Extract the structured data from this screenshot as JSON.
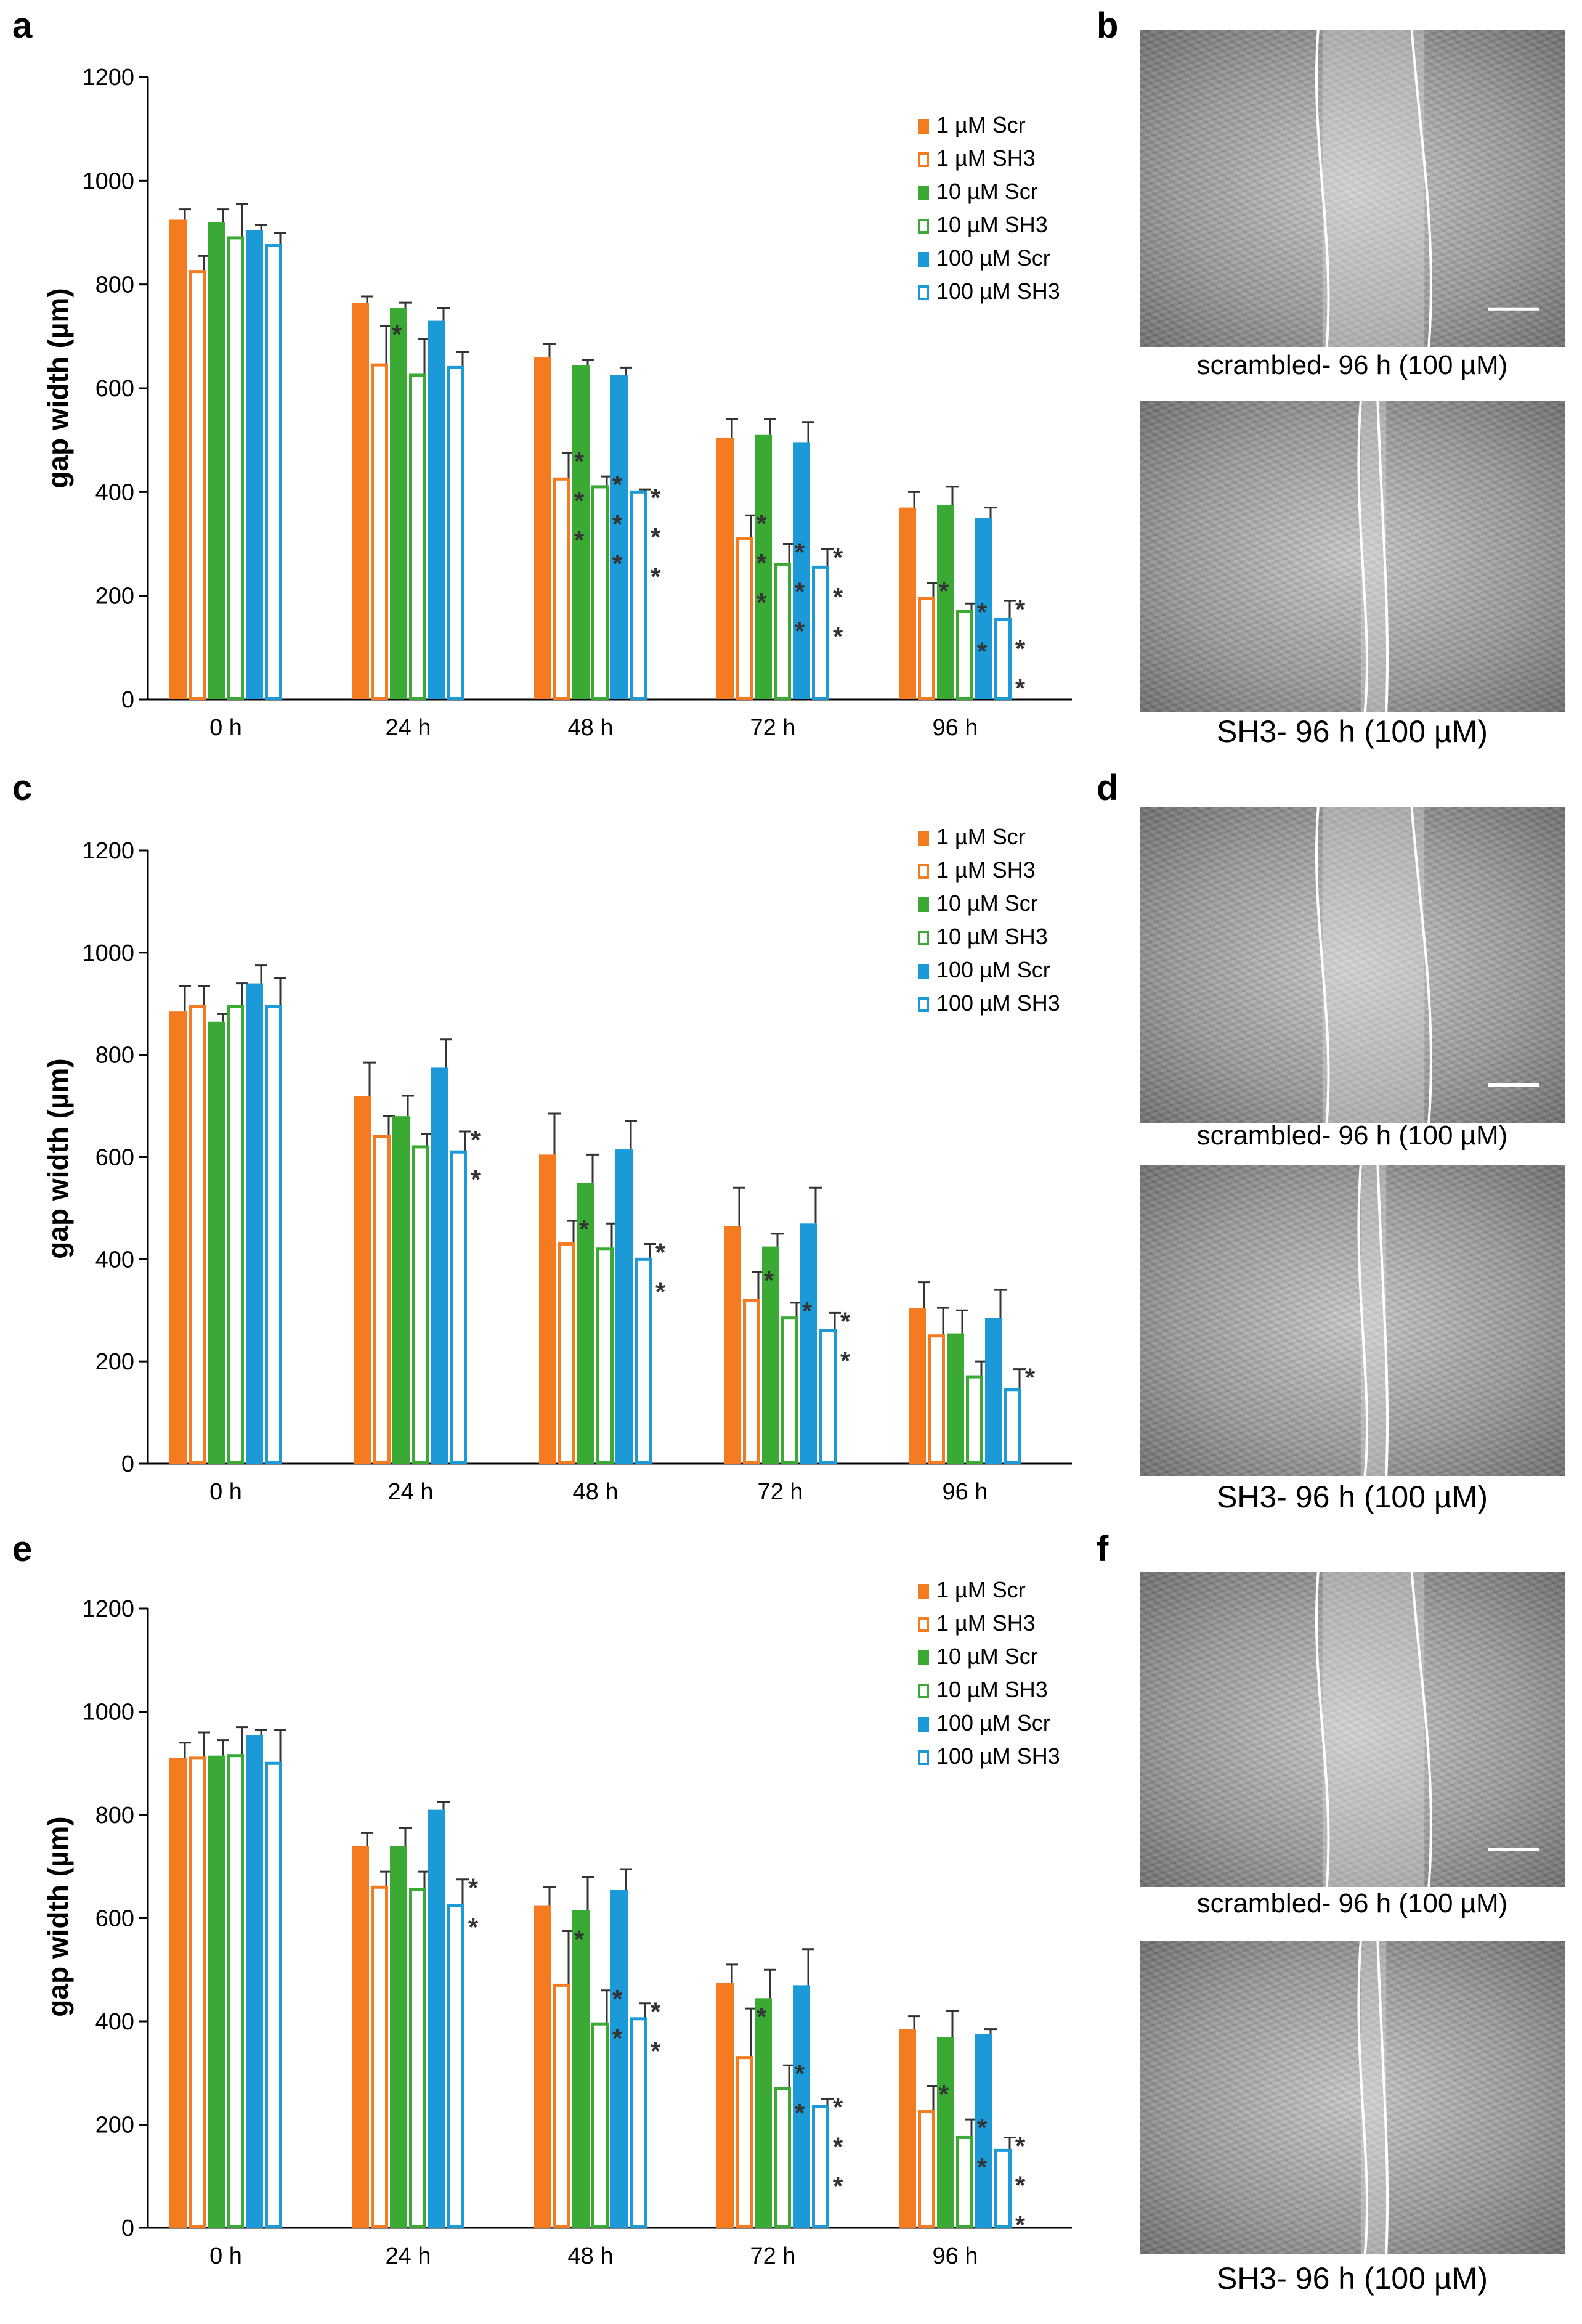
{
  "colors": {
    "orange": "#F47B20",
    "green": "#3AAA35",
    "blue": "#1B9AD7",
    "axis": "#000000",
    "error": "#333333",
    "star": "#333333"
  },
  "chart_data": [
    {
      "panel": "a",
      "type": "bar",
      "ylabel": "gap width (µm)",
      "ylim": [
        0,
        1200
      ],
      "yticks": [
        "0",
        "200",
        "400",
        "600",
        "800",
        "1000",
        "1200"
      ],
      "categories": [
        "0 h",
        "24 h",
        "48 h",
        "72 h",
        "96 h"
      ],
      "series": [
        {
          "name": "1 µM Scr",
          "color": "orange",
          "filled": true,
          "values": [
            925,
            765,
            660,
            505,
            370
          ],
          "errors": [
            20,
            12,
            25,
            35,
            30
          ]
        },
        {
          "name": "1 µM SH3",
          "color": "orange",
          "filled": false,
          "values": [
            825,
            645,
            425,
            310,
            195
          ],
          "errors": [
            30,
            75,
            50,
            45,
            30
          ]
        },
        {
          "name": "10 µM Scr",
          "color": "green",
          "filled": true,
          "values": [
            920,
            755,
            645,
            510,
            375
          ],
          "errors": [
            25,
            10,
            10,
            30,
            35
          ]
        },
        {
          "name": "10 µM SH3",
          "color": "green",
          "filled": false,
          "values": [
            890,
            625,
            410,
            260,
            170
          ],
          "errors": [
            65,
            70,
            20,
            40,
            15
          ]
        },
        {
          "name": "100 µM Scr",
          "color": "blue",
          "filled": true,
          "values": [
            905,
            730,
            625,
            495,
            350
          ],
          "errors": [
            10,
            25,
            15,
            40,
            20
          ]
        },
        {
          "name": "100 µM SH3",
          "color": "blue",
          "filled": false,
          "values": [
            875,
            640,
            400,
            255,
            155
          ],
          "errors": [
            25,
            30,
            5,
            35,
            35
          ]
        }
      ],
      "significance": [
        {
          "category": 1,
          "series": 1,
          "text": "*"
        },
        {
          "category": 2,
          "series": 1,
          "text": "*"
        },
        {
          "category": 2,
          "series": 1,
          "text": "*"
        },
        {
          "category": 2,
          "series": 1,
          "text": "*"
        },
        {
          "category": 2,
          "series": 3,
          "text": "*"
        },
        {
          "category": 2,
          "series": 3,
          "text": "*"
        },
        {
          "category": 2,
          "series": 3,
          "text": "*"
        },
        {
          "category": 2,
          "series": 5,
          "text": "*"
        },
        {
          "category": 2,
          "series": 5,
          "text": "*"
        },
        {
          "category": 2,
          "series": 5,
          "text": "*"
        },
        {
          "category": 3,
          "series": 1,
          "text": "*"
        },
        {
          "category": 3,
          "series": 1,
          "text": "*"
        },
        {
          "category": 3,
          "series": 1,
          "text": "*"
        },
        {
          "category": 3,
          "series": 3,
          "text": "*"
        },
        {
          "category": 3,
          "series": 3,
          "text": "*"
        },
        {
          "category": 3,
          "series": 3,
          "text": "*"
        },
        {
          "category": 3,
          "series": 5,
          "text": "*"
        },
        {
          "category": 3,
          "series": 5,
          "text": "*"
        },
        {
          "category": 3,
          "series": 5,
          "text": "*"
        },
        {
          "category": 4,
          "series": 1,
          "text": "*"
        },
        {
          "category": 4,
          "series": 3,
          "text": "*"
        },
        {
          "category": 4,
          "series": 3,
          "text": "*"
        },
        {
          "category": 4,
          "series": 5,
          "text": "*"
        },
        {
          "category": 4,
          "series": 5,
          "text": "*"
        },
        {
          "category": 4,
          "series": 5,
          "text": "*"
        }
      ]
    },
    {
      "panel": "c",
      "type": "bar",
      "ylabel": "gap width (µm)",
      "ylim": [
        0,
        1200
      ],
      "yticks": [
        "0",
        "200",
        "400",
        "600",
        "800",
        "1000",
        "1200"
      ],
      "categories": [
        "0 h",
        "24 h",
        "48 h",
        "72 h",
        "96 h"
      ],
      "series": [
        {
          "name": "1 µM Scr",
          "color": "orange",
          "filled": true,
          "values": [
            885,
            720,
            605,
            465,
            305
          ],
          "errors": [
            50,
            65,
            80,
            75,
            50
          ]
        },
        {
          "name": "1 µM SH3",
          "color": "orange",
          "filled": false,
          "values": [
            895,
            640,
            430,
            320,
            250
          ],
          "errors": [
            40,
            40,
            45,
            55,
            55
          ]
        },
        {
          "name": "10 µM Scr",
          "color": "green",
          "filled": true,
          "values": [
            865,
            680,
            550,
            425,
            255
          ],
          "errors": [
            15,
            40,
            55,
            25,
            45
          ]
        },
        {
          "name": "10 µM SH3",
          "color": "green",
          "filled": false,
          "values": [
            895,
            620,
            420,
            285,
            170
          ],
          "errors": [
            45,
            25,
            50,
            30,
            30
          ]
        },
        {
          "name": "100 µM Scr",
          "color": "blue",
          "filled": true,
          "values": [
            940,
            775,
            615,
            470,
            285
          ],
          "errors": [
            35,
            55,
            55,
            70,
            55
          ]
        },
        {
          "name": "100 µM SH3",
          "color": "blue",
          "filled": false,
          "values": [
            895,
            610,
            400,
            260,
            145
          ],
          "errors": [
            55,
            40,
            30,
            35,
            40
          ]
        }
      ],
      "significance": [
        {
          "category": 1,
          "series": 5,
          "text": "*"
        },
        {
          "category": 1,
          "series": 5,
          "text": "*"
        },
        {
          "category": 2,
          "series": 1,
          "text": "*"
        },
        {
          "category": 2,
          "series": 5,
          "text": "*"
        },
        {
          "category": 2,
          "series": 5,
          "text": "*"
        },
        {
          "category": 3,
          "series": 1,
          "text": "*"
        },
        {
          "category": 3,
          "series": 3,
          "text": "*"
        },
        {
          "category": 3,
          "series": 5,
          "text": "*"
        },
        {
          "category": 3,
          "series": 5,
          "text": "*"
        },
        {
          "category": 4,
          "series": 5,
          "text": "*"
        }
      ]
    },
    {
      "panel": "e",
      "type": "bar",
      "ylabel": "gap width (µm)",
      "ylim": [
        0,
        1200
      ],
      "yticks": [
        "0",
        "200",
        "400",
        "600",
        "800",
        "1000",
        "1200"
      ],
      "categories": [
        "0 h",
        "24 h",
        "48 h",
        "72 h",
        "96 h"
      ],
      "series": [
        {
          "name": "1 µM Scr",
          "color": "orange",
          "filled": true,
          "values": [
            910,
            740,
            625,
            475,
            385
          ],
          "errors": [
            30,
            25,
            35,
            35,
            25
          ]
        },
        {
          "name": "1 µM SH3",
          "color": "orange",
          "filled": false,
          "values": [
            910,
            660,
            470,
            330,
            225
          ],
          "errors": [
            50,
            30,
            105,
            95,
            50
          ]
        },
        {
          "name": "10 µM Scr",
          "color": "green",
          "filled": true,
          "values": [
            915,
            740,
            615,
            445,
            370
          ],
          "errors": [
            30,
            35,
            65,
            55,
            50
          ]
        },
        {
          "name": "10 µM SH3",
          "color": "green",
          "filled": false,
          "values": [
            915,
            655,
            395,
            270,
            175
          ],
          "errors": [
            55,
            35,
            65,
            45,
            35
          ]
        },
        {
          "name": "100 µM Scr",
          "color": "blue",
          "filled": true,
          "values": [
            955,
            810,
            655,
            470,
            375
          ],
          "errors": [
            10,
            15,
            40,
            70,
            10
          ]
        },
        {
          "name": "100 µM SH3",
          "color": "blue",
          "filled": false,
          "values": [
            900,
            625,
            405,
            235,
            150
          ],
          "errors": [
            65,
            50,
            30,
            15,
            25
          ]
        }
      ],
      "significance": [
        {
          "category": 1,
          "series": 5,
          "text": "*"
        },
        {
          "category": 1,
          "series": 5,
          "text": "*"
        },
        {
          "category": 2,
          "series": 1,
          "text": "*"
        },
        {
          "category": 2,
          "series": 3,
          "text": "*"
        },
        {
          "category": 2,
          "series": 3,
          "text": "*"
        },
        {
          "category": 2,
          "series": 5,
          "text": "*"
        },
        {
          "category": 2,
          "series": 5,
          "text": "*"
        },
        {
          "category": 3,
          "series": 1,
          "text": "*"
        },
        {
          "category": 3,
          "series": 3,
          "text": "*"
        },
        {
          "category": 3,
          "series": 3,
          "text": "*"
        },
        {
          "category": 3,
          "series": 5,
          "text": "*"
        },
        {
          "category": 3,
          "series": 5,
          "text": "*"
        },
        {
          "category": 3,
          "series": 5,
          "text": "*"
        },
        {
          "category": 4,
          "series": 1,
          "text": "*"
        },
        {
          "category": 4,
          "series": 3,
          "text": "*"
        },
        {
          "category": 4,
          "series": 3,
          "text": "*"
        },
        {
          "category": 4,
          "series": 5,
          "text": "*"
        },
        {
          "category": 4,
          "series": 5,
          "text": "*"
        },
        {
          "category": 4,
          "series": 5,
          "text": "*"
        }
      ]
    }
  ],
  "panels": {
    "a": "a",
    "b": "b",
    "c": "c",
    "d": "d",
    "e": "e",
    "f": "f"
  },
  "micrographs": [
    {
      "panel": "b",
      "top_caption": "scrambled- 96 h (100 µM)",
      "bottom_caption": "SH3- 96 h (100 µM)"
    },
    {
      "panel": "d",
      "top_caption": "scrambled- 96 h (100 µM)",
      "bottom_caption": "SH3- 96 h (100 µM)"
    },
    {
      "panel": "f",
      "top_caption": "scrambled- 96 h (100 µM)",
      "bottom_caption": "SH3- 96 h (100 µM)"
    }
  ]
}
